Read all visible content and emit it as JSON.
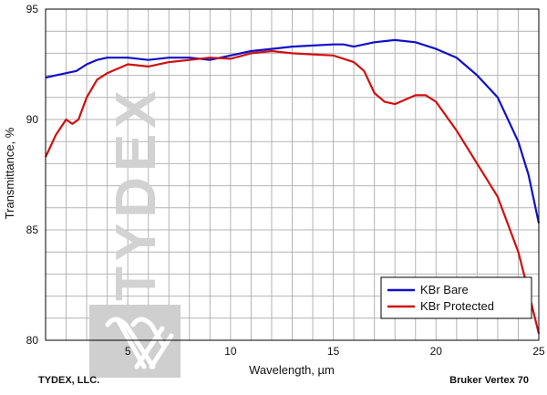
{
  "chart_data": {
    "type": "line",
    "xlabel": "Wavelength, µm",
    "ylabel": "Transmittance, %",
    "xlim": [
      1.0,
      25.0
    ],
    "ylim": [
      80,
      95
    ],
    "xticks": [
      5,
      10,
      15,
      20,
      25
    ],
    "yticks": [
      80,
      85,
      90,
      95
    ],
    "grid": true,
    "legend_position": "bottom-right",
    "series": [
      {
        "name": "KBr Bare",
        "color": "#1010c8",
        "x": [
          1.0,
          1.5,
          2.0,
          2.5,
          3.0,
          3.5,
          4.0,
          5.0,
          6.0,
          7.0,
          8.0,
          9.0,
          10.0,
          11.0,
          12.0,
          13.0,
          14.0,
          15.0,
          15.5,
          16.0,
          17.0,
          18.0,
          19.0,
          20.0,
          21.0,
          22.0,
          23.0,
          24.0,
          24.5,
          25.0
        ],
        "y": [
          91.9,
          92.0,
          92.1,
          92.2,
          92.5,
          92.7,
          92.8,
          92.8,
          92.7,
          92.8,
          92.8,
          92.7,
          92.9,
          93.1,
          93.2,
          93.3,
          93.35,
          93.4,
          93.4,
          93.3,
          93.5,
          93.6,
          93.5,
          93.2,
          92.8,
          92.0,
          91.0,
          89.0,
          87.5,
          85.3
        ]
      },
      {
        "name": "KBr Protected",
        "color": "#d01010",
        "x": [
          1.0,
          1.5,
          2.0,
          2.3,
          2.6,
          3.0,
          3.5,
          4.0,
          5.0,
          6.0,
          7.0,
          8.0,
          9.0,
          10.0,
          11.0,
          12.0,
          13.0,
          14.0,
          15.0,
          16.0,
          16.5,
          17.0,
          17.5,
          18.0,
          18.5,
          19.0,
          19.5,
          20.0,
          21.0,
          22.0,
          23.0,
          24.0,
          24.5,
          25.0
        ],
        "y": [
          88.3,
          89.3,
          90.0,
          89.8,
          90.0,
          91.0,
          91.8,
          92.1,
          92.5,
          92.4,
          92.6,
          92.7,
          92.8,
          92.75,
          93.0,
          93.1,
          93.0,
          92.95,
          92.9,
          92.6,
          92.2,
          91.2,
          90.8,
          90.7,
          90.9,
          91.1,
          91.1,
          90.8,
          89.5,
          88.0,
          86.5,
          84.0,
          82.2,
          80.3
        ]
      }
    ]
  },
  "watermark": "TYDEX",
  "footer": {
    "left": "TYDEX, LLC.",
    "right": "Bruker Vertex 70"
  }
}
